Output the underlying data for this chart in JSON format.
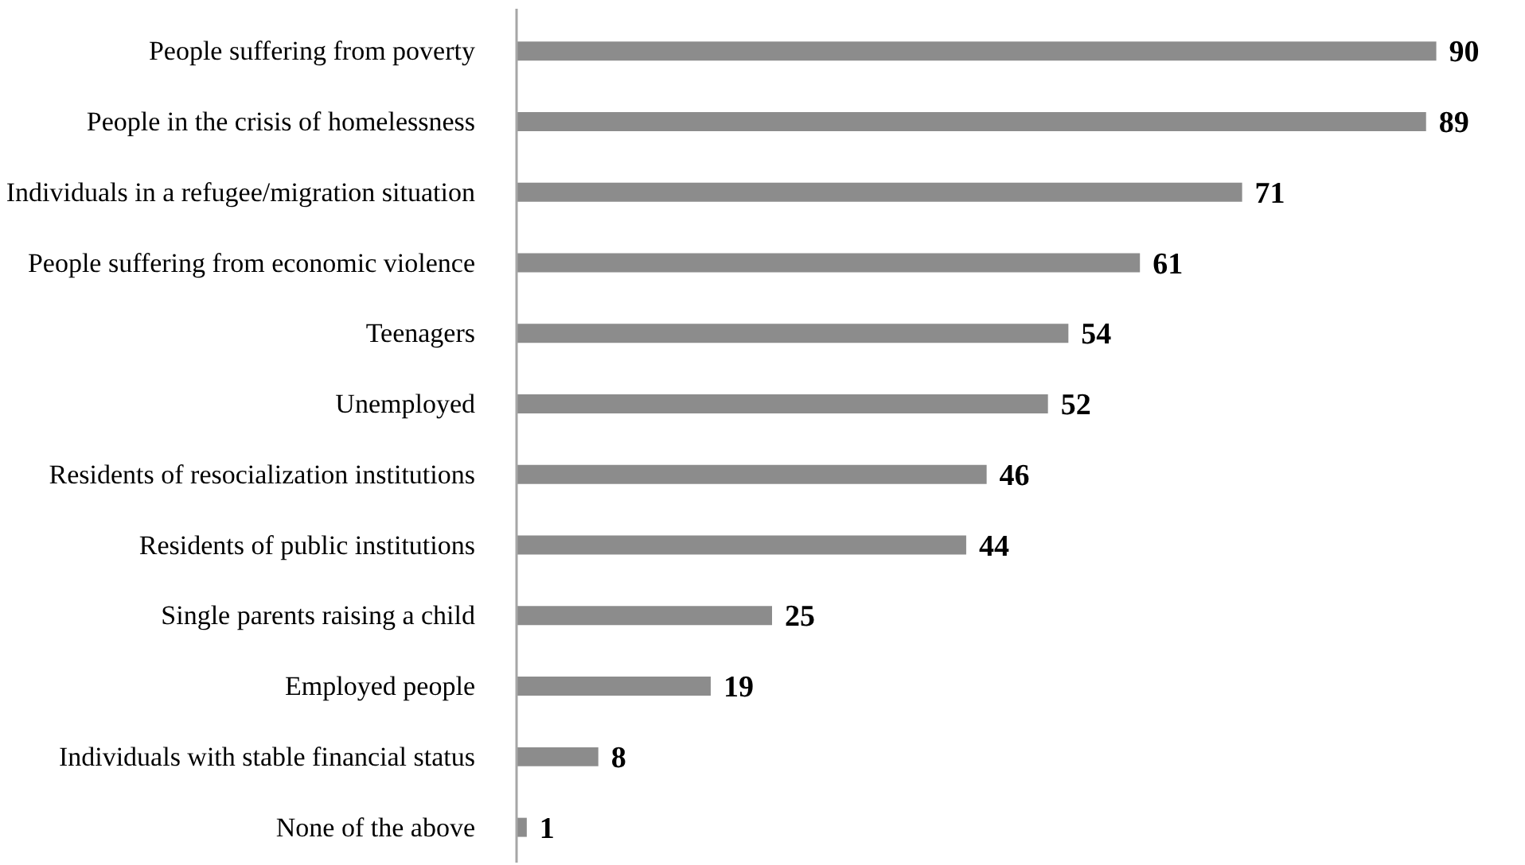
{
  "chart_data": {
    "type": "bar",
    "orientation": "horizontal",
    "categories": [
      "People suffering from poverty",
      "People in the crisis of homelessness",
      "Individuals in a refugee/migration situation",
      "People suffering from economic violence",
      "Teenagers",
      "Unemployed",
      "Residents of resocialization institutions",
      "Residents of public institutions",
      "Single parents raising a child",
      "Employed people",
      "Individuals with stable financial status",
      "None of the above"
    ],
    "values": [
      90,
      89,
      71,
      61,
      54,
      52,
      46,
      44,
      25,
      19,
      8,
      1
    ],
    "color": "#8c8c8c",
    "xlim": [
      0,
      90
    ],
    "data_labels": true,
    "grid": false
  }
}
